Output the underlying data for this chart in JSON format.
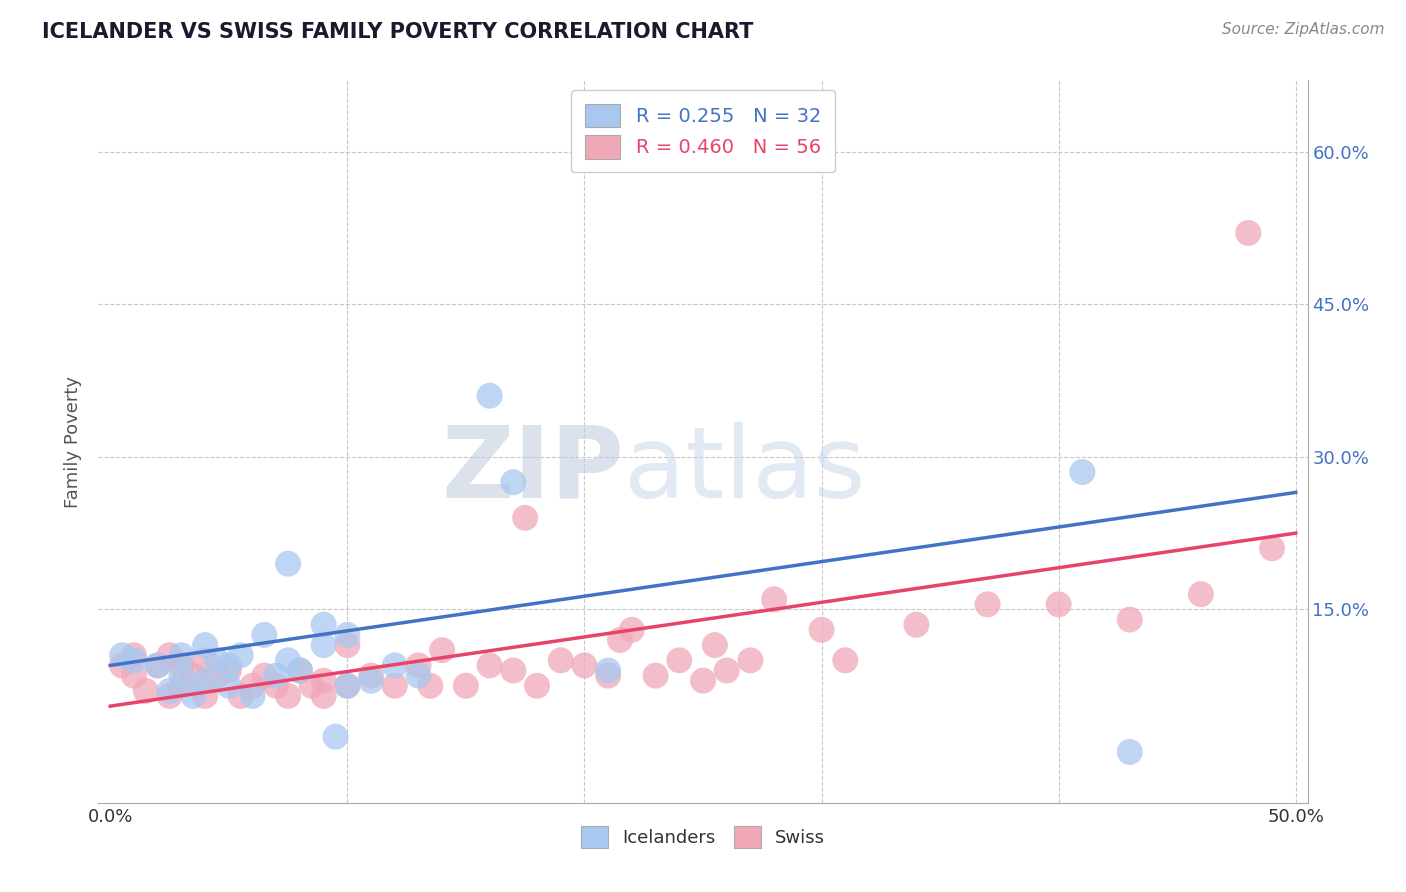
{
  "title": "ICELANDER VS SWISS FAMILY POVERTY CORRELATION CHART",
  "source": "Source: ZipAtlas.com",
  "xlabel": "",
  "ylabel": "Family Poverty",
  "xlim": [
    -0.005,
    0.505
  ],
  "ylim": [
    -0.04,
    0.67
  ],
  "xticks": [
    0.0,
    0.1,
    0.2,
    0.3,
    0.4,
    0.5
  ],
  "xtick_labels": [
    "0.0%",
    "",
    "",
    "",
    "",
    "50.0%"
  ],
  "yticks": [
    0.15,
    0.3,
    0.45,
    0.6
  ],
  "ytick_labels": [
    "15.0%",
    "30.0%",
    "45.0%",
    "60.0%"
  ],
  "grid_color": "#c8c8c8",
  "background_color": "#ffffff",
  "watermark_zip": "ZIP",
  "watermark_atlas": "atlas",
  "icelander_color": "#a8c8f0",
  "swiss_color": "#f0a8b8",
  "blue_line_color": "#4472C4",
  "pink_line_color": "#E8436A",
  "legend_label_icelander": "R = 0.255   N = 32",
  "legend_label_swiss": "R = 0.460   N = 56",
  "legend_label_bottom_icel": "Icelanders",
  "legend_label_bottom_swiss": "Swiss",
  "icelander_x": [
    0.005,
    0.01,
    0.02,
    0.025,
    0.03,
    0.03,
    0.035,
    0.04,
    0.04,
    0.045,
    0.05,
    0.05,
    0.055,
    0.06,
    0.065,
    0.07,
    0.075,
    0.075,
    0.08,
    0.09,
    0.09,
    0.095,
    0.1,
    0.1,
    0.11,
    0.12,
    0.13,
    0.16,
    0.17,
    0.21,
    0.41,
    0.43
  ],
  "icelander_y": [
    0.105,
    0.1,
    0.095,
    0.07,
    0.085,
    0.105,
    0.065,
    0.08,
    0.115,
    0.1,
    0.075,
    0.095,
    0.105,
    0.065,
    0.125,
    0.085,
    0.1,
    0.195,
    0.09,
    0.115,
    0.135,
    0.025,
    0.075,
    0.125,
    0.08,
    0.095,
    0.085,
    0.36,
    0.275,
    0.09,
    0.285,
    0.01
  ],
  "swiss_x": [
    0.005,
    0.01,
    0.01,
    0.015,
    0.02,
    0.025,
    0.025,
    0.03,
    0.03,
    0.035,
    0.04,
    0.04,
    0.045,
    0.05,
    0.055,
    0.06,
    0.065,
    0.07,
    0.075,
    0.08,
    0.085,
    0.09,
    0.09,
    0.1,
    0.1,
    0.11,
    0.12,
    0.13,
    0.135,
    0.14,
    0.15,
    0.16,
    0.17,
    0.175,
    0.18,
    0.19,
    0.2,
    0.21,
    0.215,
    0.22,
    0.23,
    0.24,
    0.25,
    0.255,
    0.26,
    0.27,
    0.28,
    0.3,
    0.31,
    0.34,
    0.37,
    0.4,
    0.43,
    0.46,
    0.48,
    0.49
  ],
  "swiss_y": [
    0.095,
    0.105,
    0.085,
    0.07,
    0.095,
    0.065,
    0.105,
    0.075,
    0.095,
    0.085,
    0.065,
    0.1,
    0.085,
    0.09,
    0.065,
    0.075,
    0.085,
    0.075,
    0.065,
    0.09,
    0.075,
    0.08,
    0.065,
    0.075,
    0.115,
    0.085,
    0.075,
    0.095,
    0.075,
    0.11,
    0.075,
    0.095,
    0.09,
    0.24,
    0.075,
    0.1,
    0.095,
    0.085,
    0.12,
    0.13,
    0.085,
    0.1,
    0.08,
    0.115,
    0.09,
    0.1,
    0.16,
    0.13,
    0.1,
    0.135,
    0.155,
    0.155,
    0.14,
    0.165,
    0.52,
    0.21
  ],
  "icelander_trend_x": [
    0.0,
    0.5
  ],
  "icelander_trend_y": [
    0.095,
    0.265
  ],
  "swiss_trend_x": [
    0.0,
    0.5
  ],
  "swiss_trend_y": [
    0.055,
    0.225
  ]
}
